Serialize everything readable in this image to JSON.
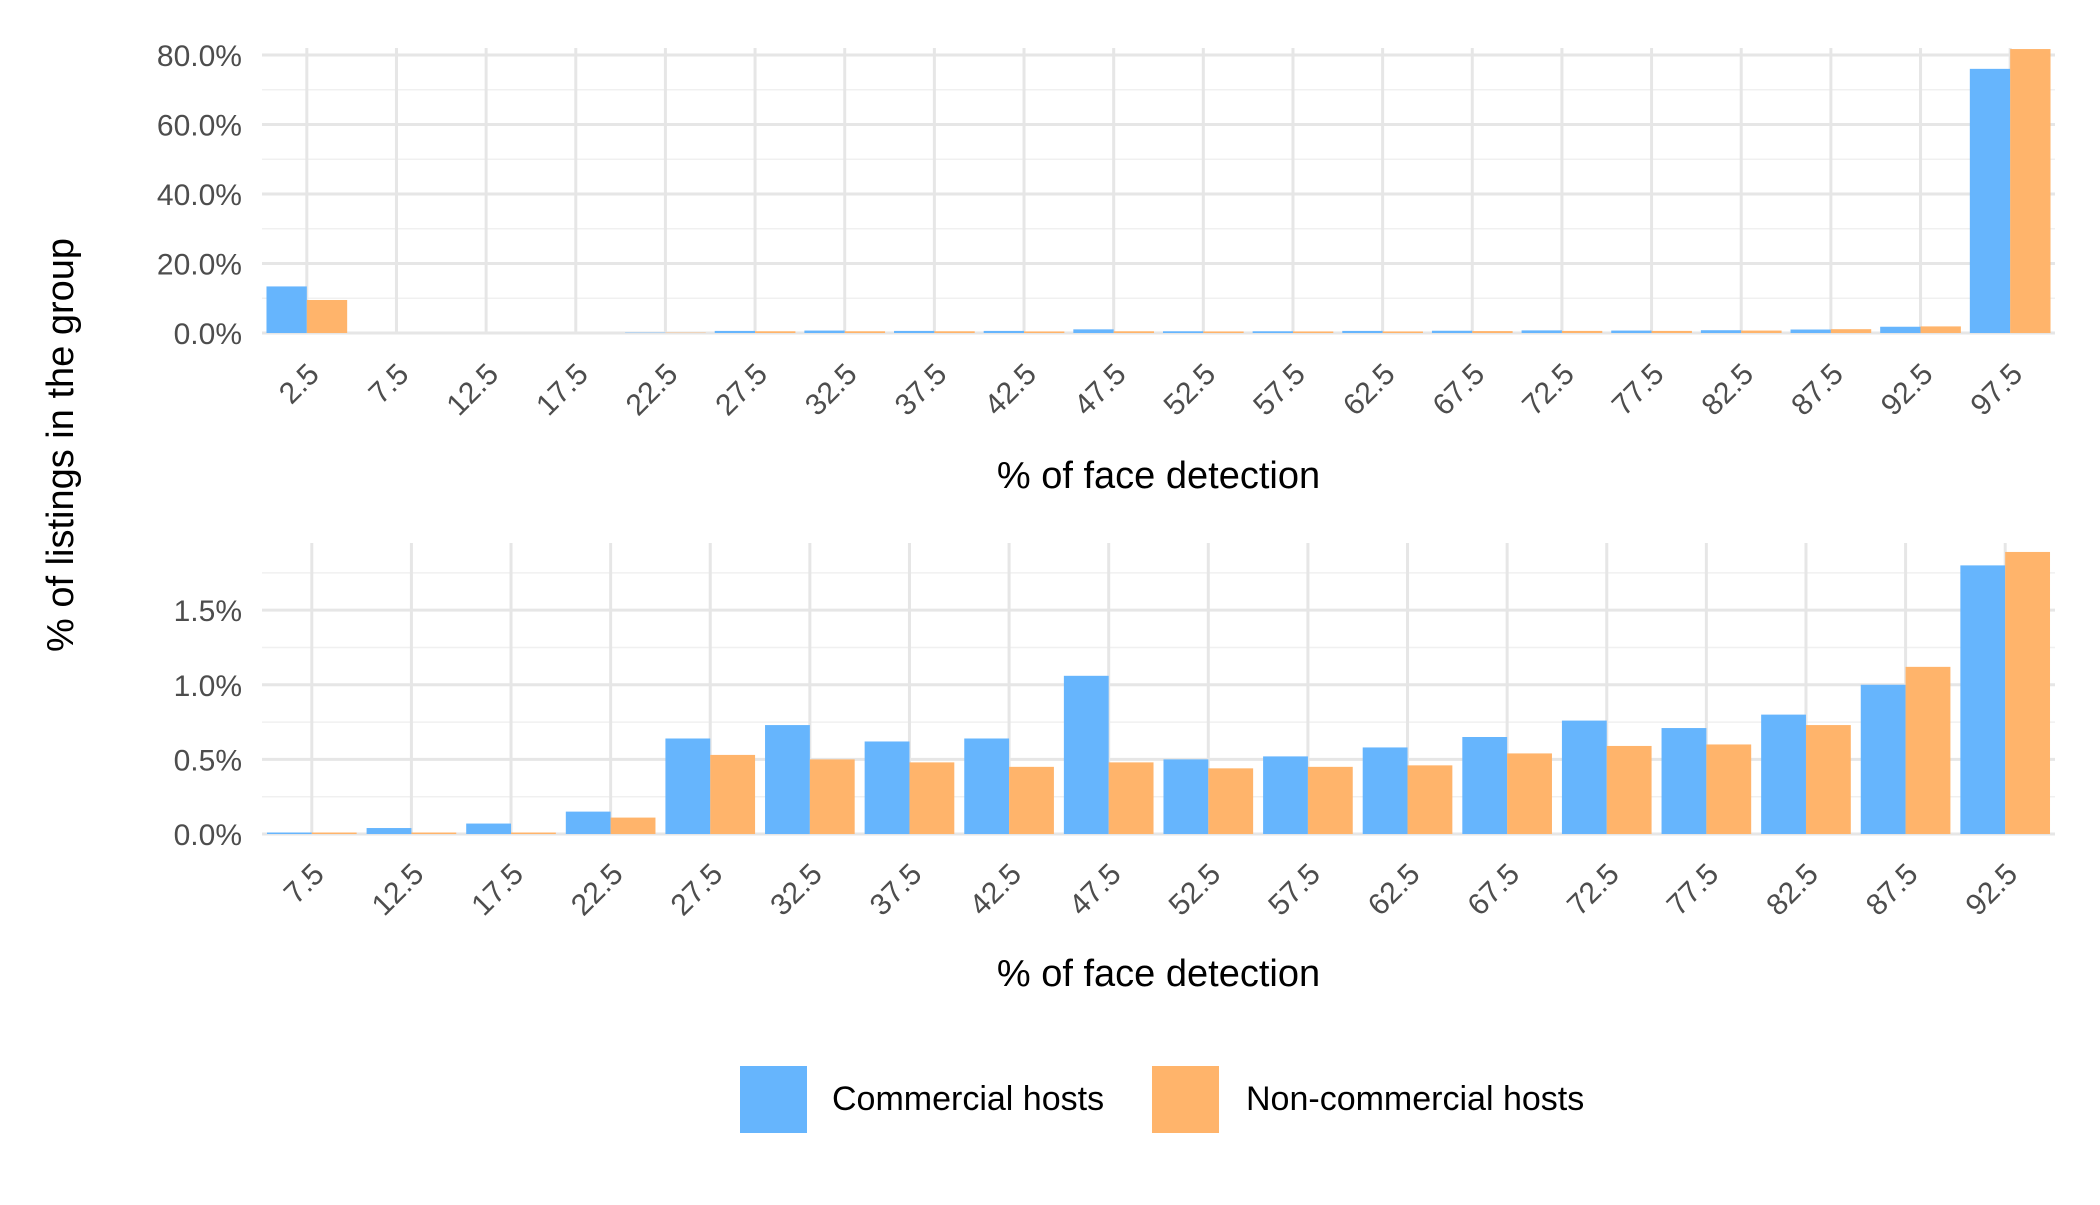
{
  "figure": {
    "ylabel": "% of listings in the group",
    "legend_position": "bottom",
    "legend": [
      {
        "label": "Commercial hosts",
        "color": "#66b5fd"
      },
      {
        "label": "Non-commercial hosts",
        "color": "#ffb46b"
      }
    ]
  },
  "chart_data": [
    {
      "type": "bar",
      "xlabel": "% of face detection",
      "categories": [
        "2.5",
        "7.5",
        "12.5",
        "17.5",
        "22.5",
        "27.5",
        "32.5",
        "37.5",
        "42.5",
        "47.5",
        "52.5",
        "57.5",
        "62.5",
        "67.5",
        "72.5",
        "77.5",
        "82.5",
        "87.5",
        "92.5",
        "97.5"
      ],
      "series": [
        {
          "name": "Commercial hosts",
          "color": "#66b5fd",
          "values": [
            13.4,
            0,
            0,
            0,
            0.1,
            0.6,
            0.7,
            0.6,
            0.6,
            1.05,
            0.5,
            0.5,
            0.6,
            0.65,
            0.75,
            0.7,
            0.8,
            1.0,
            1.8,
            76
          ]
        },
        {
          "name": "Non-commercial hosts",
          "color": "#ffb46b",
          "values": [
            9.5,
            0,
            0,
            0,
            0.1,
            0.5,
            0.5,
            0.5,
            0.45,
            0.5,
            0.45,
            0.45,
            0.45,
            0.55,
            0.6,
            0.6,
            0.7,
            1.1,
            1.9,
            81.7
          ]
        }
      ],
      "yticks": [
        "0.0%",
        "20.0%",
        "40.0%",
        "60.0%",
        "80.0%"
      ],
      "ylim": [
        0,
        82
      ],
      "grid": true
    },
    {
      "type": "bar",
      "xlabel": "% of face detection",
      "categories": [
        "7.5",
        "12.5",
        "17.5",
        "22.5",
        "27.5",
        "32.5",
        "37.5",
        "42.5",
        "47.5",
        "52.5",
        "57.5",
        "62.5",
        "67.5",
        "72.5",
        "77.5",
        "82.5",
        "87.5",
        "92.5"
      ],
      "series": [
        {
          "name": "Commercial hosts",
          "color": "#66b5fd",
          "values": [
            0.01,
            0.04,
            0.07,
            0.15,
            0.64,
            0.73,
            0.62,
            0.64,
            1.06,
            0.5,
            0.52,
            0.58,
            0.65,
            0.76,
            0.71,
            0.8,
            1.0,
            1.8
          ]
        },
        {
          "name": "Non-commercial hosts",
          "color": "#ffb46b",
          "values": [
            0.01,
            0.01,
            0.01,
            0.11,
            0.53,
            0.5,
            0.48,
            0.45,
            0.48,
            0.44,
            0.45,
            0.46,
            0.54,
            0.59,
            0.6,
            0.73,
            1.12,
            1.89
          ]
        }
      ],
      "yticks": [
        "0.0%",
        "0.5%",
        "1.0%",
        "1.5%"
      ],
      "ytick_values": [
        0,
        0.5,
        1.0,
        1.5
      ],
      "ylim": [
        0,
        1.95
      ],
      "grid": true
    }
  ]
}
